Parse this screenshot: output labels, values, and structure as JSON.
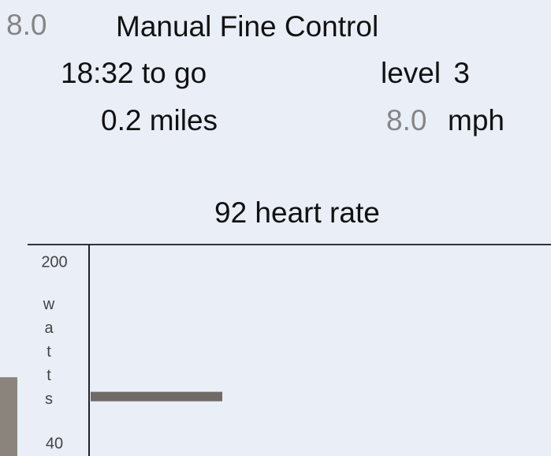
{
  "header": {
    "speed_setting": "8.0",
    "title": "Manual Fine Control"
  },
  "stats": {
    "time_left": "18:32 to go",
    "level": "level 3",
    "distance": "0.2 miles",
    "speed_value": "8.0",
    "speed_unit": "mph",
    "heart_rate": "92 heart rate"
  },
  "graph": {
    "y_label": "watts",
    "ylim": [
      40,
      200
    ],
    "yticks": [
      200,
      40
    ],
    "current_level": 82,
    "profile_column": 99
  }
}
